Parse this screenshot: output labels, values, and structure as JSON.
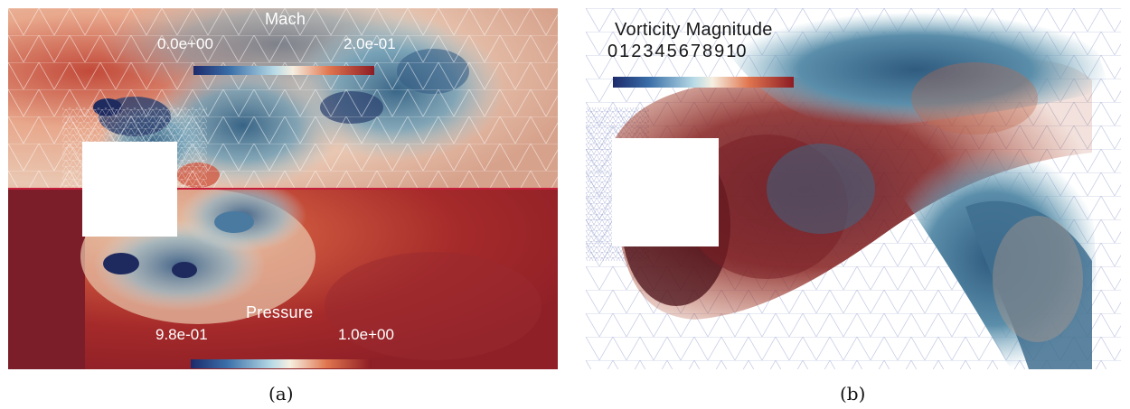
{
  "panels": {
    "a": {
      "caption": "(a)",
      "mach": {
        "title": "Mach",
        "min": "0.0e+00",
        "max": "2.0e-01"
      },
      "pressure": {
        "title": "Pressure",
        "min": "9.8e-01",
        "max": "1.0e+00"
      }
    },
    "b": {
      "caption": "(b)",
      "vorticity": {
        "title": "Vorticity Magnitude",
        "ticks": [
          "0",
          "1",
          "2",
          "3",
          "4",
          "5",
          "6",
          "7",
          "8",
          "9",
          "10"
        ]
      }
    }
  },
  "colors": {
    "cool_warm_low": "#2b2f72",
    "cool_warm_mid": "#f4f0e4",
    "cool_warm_high": "#8c1c24",
    "background": "#ffffff"
  }
}
